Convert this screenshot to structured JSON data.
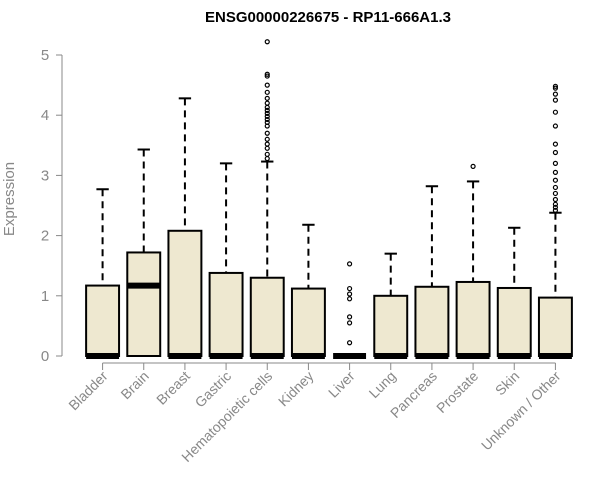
{
  "chart_data": {
    "type": "box",
    "title": "ENSG00000226675 - RP11-666A1.3",
    "ylabel": "Expression",
    "xlabel": "",
    "ylim": [
      0,
      5
    ],
    "yticks": [
      0,
      1,
      2,
      3,
      4,
      5
    ],
    "grid": false,
    "legend": "none",
    "box_fill": "#EEE8D0",
    "box_stroke": "#000000",
    "categories": [
      "Bladder",
      "Brain",
      "Breast",
      "Gastric",
      "Hematopoietic cells",
      "Kidney",
      "Liver",
      "Lung",
      "Pancreas",
      "Prostate",
      "Skin",
      "Unknown / Other"
    ],
    "boxes": [
      {
        "category": "Bladder",
        "q1": 0,
        "median": 0,
        "q3": 1.17,
        "whisker_low": 0,
        "whisker_high": 2.77,
        "outliers": []
      },
      {
        "category": "Brain",
        "q1": 0,
        "median": 1.17,
        "q3": 1.72,
        "whisker_low": 0,
        "whisker_high": 3.43,
        "outliers": []
      },
      {
        "category": "Breast",
        "q1": 0,
        "median": 0,
        "q3": 2.08,
        "whisker_low": 0,
        "whisker_high": 4.28,
        "outliers": []
      },
      {
        "category": "Gastric",
        "q1": 0,
        "median": 0,
        "q3": 1.38,
        "whisker_low": 0,
        "whisker_high": 3.2,
        "outliers": []
      },
      {
        "category": "Hematopoietic cells",
        "q1": 0,
        "median": 0,
        "q3": 1.3,
        "whisker_low": 0,
        "whisker_high": 3.23,
        "outliers": [
          3.28,
          3.35,
          3.45,
          3.52,
          3.6,
          3.7,
          3.82,
          3.88,
          3.93,
          3.98,
          4.03,
          4.08,
          4.13,
          4.2,
          4.28,
          4.38,
          4.5,
          4.65,
          4.68,
          5.22
        ]
      },
      {
        "category": "Kidney",
        "q1": 0,
        "median": 0,
        "q3": 1.12,
        "whisker_low": 0,
        "whisker_high": 2.18,
        "outliers": []
      },
      {
        "category": "Liver",
        "q1": 0,
        "median": 0,
        "q3": 0,
        "whisker_low": 0,
        "whisker_high": 0,
        "outliers": [
          0.22,
          0.55,
          0.65,
          0.95,
          1.03,
          1.12,
          1.53
        ]
      },
      {
        "category": "Lung",
        "q1": 0,
        "median": 0,
        "q3": 1.0,
        "whisker_low": 0,
        "whisker_high": 1.7,
        "outliers": []
      },
      {
        "category": "Pancreas",
        "q1": 0,
        "median": 0,
        "q3": 1.15,
        "whisker_low": 0,
        "whisker_high": 2.82,
        "outliers": []
      },
      {
        "category": "Prostate",
        "q1": 0,
        "median": 0,
        "q3": 1.23,
        "whisker_low": 0,
        "whisker_high": 2.9,
        "outliers": [
          3.15
        ]
      },
      {
        "category": "Skin",
        "q1": 0,
        "median": 0,
        "q3": 1.13,
        "whisker_low": 0,
        "whisker_high": 2.13,
        "outliers": []
      },
      {
        "category": "Unknown / Other",
        "q1": 0,
        "median": 0,
        "q3": 0.97,
        "whisker_low": 0,
        "whisker_high": 2.38,
        "outliers": [
          2.42,
          2.47,
          2.52,
          2.6,
          2.7,
          2.8,
          2.92,
          3.05,
          3.2,
          3.38,
          3.52,
          3.82,
          4.05,
          4.25,
          4.35,
          4.45,
          4.48
        ]
      }
    ]
  }
}
